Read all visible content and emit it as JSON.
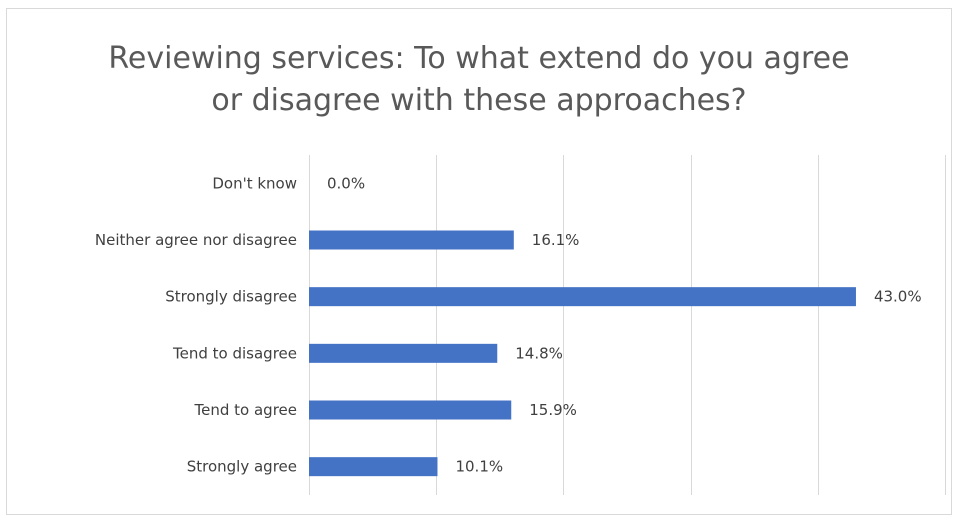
{
  "chart_data": {
    "type": "bar",
    "orientation": "horizontal",
    "title": "Reviewing services: To what extend do you agree or disagree with these approaches?",
    "title_lines": [
      "Reviewing services: To what extend do you agree",
      "or disagree with these approaches?"
    ],
    "categories": [
      "Don't know",
      "Neither agree nor disagree",
      "Strongly disagree",
      "Tend to disagree",
      "Tend to agree",
      "Strongly agree"
    ],
    "values": [
      0.0,
      16.1,
      43.0,
      14.8,
      15.9,
      10.1
    ],
    "value_labels": [
      "0.0%",
      "16.1%",
      "43.0%",
      "14.8%",
      "15.9%",
      "10.1%"
    ],
    "unit": "%",
    "xlim": [
      0,
      50
    ],
    "x_gridline_step": 10,
    "grid": true,
    "legend": "none",
    "bar_color": "#4472c4",
    "gridline_color": "#d9d9d9",
    "axis_color": "#d9d9d9",
    "text_color": "#404040",
    "title_color": "#595959"
  }
}
